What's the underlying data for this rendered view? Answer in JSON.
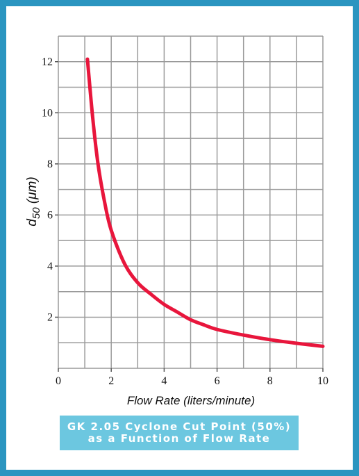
{
  "chart_data": {
    "type": "line",
    "title": "",
    "xlabel": "Flow Rate (liters/minute)",
    "ylabel": {
      "base": "d",
      "subscript": "50",
      "unit": "(μm)"
    },
    "xlim": [
      0,
      10
    ],
    "ylim": [
      0,
      13
    ],
    "x_ticks": [
      0,
      2,
      4,
      6,
      8,
      10
    ],
    "y_ticks": [
      2,
      4,
      6,
      8,
      10,
      12
    ],
    "grid": true,
    "series": [
      {
        "color": "#e8163c",
        "x": [
          1.1,
          1.3,
          1.5,
          1.75,
          2.0,
          2.5,
          3.0,
          3.5,
          4.0,
          4.5,
          5.0,
          5.5,
          6.0,
          7.0,
          8.0,
          9.0,
          10.0
        ],
        "y": [
          12.1,
          9.8,
          8.0,
          6.5,
          5.4,
          4.1,
          3.35,
          2.9,
          2.5,
          2.2,
          1.9,
          1.7,
          1.52,
          1.3,
          1.12,
          0.98,
          0.86
        ]
      }
    ]
  },
  "caption": {
    "line1": "GK 2.05 Cyclone Cut Point (50%)",
    "line2": "as a Function of Flow Rate"
  },
  "colors": {
    "frame": "#2b95c0",
    "caption_bg": "#6cc7e0",
    "curve": "#e8163c"
  }
}
